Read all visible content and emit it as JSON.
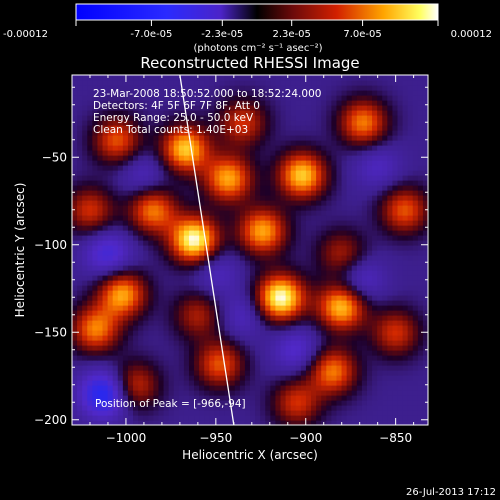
{
  "chart_data": {
    "type": "heatmap",
    "colorbar": {
      "tick_labels": [
        "-0.00012",
        "-7.0e-05",
        "-2.3e-05",
        "2.3e-05",
        "7.0e-05",
        "0.00012"
      ],
      "range": [
        -0.00012,
        0.00012
      ],
      "unit_label": "(photons cm⁻² s⁻¹ asec⁻²)"
    },
    "title": "Reconstructed RHESSI Image",
    "xlabel": "Heliocentric X (arcsec)",
    "ylabel": "Heliocentric Y (arcsec)",
    "xlim": [
      -1030,
      -832
    ],
    "ylim": [
      -203,
      -3
    ],
    "x_ticks": [
      -1000,
      -950,
      -900,
      -850
    ],
    "y_ticks": [
      -50,
      -100,
      -150,
      -200
    ],
    "annotations": [
      "23-Mar-2008 18:50:52.000 to 18:52:24.000",
      "Detectors: 4F 5F 6F 7F 8F, Att 0",
      "Energy Range: 25.0 - 50.0 keV",
      "Clean     Total counts: 1.40E+03"
    ],
    "peak_label": "Position of Peak = [-966,-94]",
    "peak": {
      "x": -966,
      "y": -94
    },
    "sources": [
      {
        "x": -962,
        "y": -97,
        "v": 0.00012
      },
      {
        "x": -967,
        "y": -45,
        "v": 0.0001
      },
      {
        "x": -943,
        "y": -62,
        "v": 9e-05
      },
      {
        "x": -902,
        "y": -60,
        "v": 0.0001
      },
      {
        "x": -914,
        "y": -130,
        "v": 0.00012
      },
      {
        "x": -924,
        "y": -92,
        "v": 9e-05
      },
      {
        "x": -880,
        "y": -135,
        "v": 0.0001
      },
      {
        "x": -1017,
        "y": -148,
        "v": 8e-05
      },
      {
        "x": -1002,
        "y": -128,
        "v": 9e-05
      },
      {
        "x": -985,
        "y": -80,
        "v": 8e-05
      },
      {
        "x": -1005,
        "y": -40,
        "v": 7e-05
      },
      {
        "x": -995,
        "y": -180,
        "v": 6e-05
      },
      {
        "x": -885,
        "y": -172,
        "v": 8e-05
      },
      {
        "x": -948,
        "y": -168,
        "v": 7e-05
      },
      {
        "x": -905,
        "y": -190,
        "v": 6e-05
      },
      {
        "x": -868,
        "y": -30,
        "v": 8e-05
      },
      {
        "x": -845,
        "y": -80,
        "v": 7e-05
      },
      {
        "x": -850,
        "y": -150,
        "v": 6e-05
      },
      {
        "x": -935,
        "y": -30,
        "v": 6e-05
      },
      {
        "x": -1020,
        "y": -80,
        "v": 6e-05
      },
      {
        "x": -880,
        "y": -105,
        "v": 5e-05
      },
      {
        "x": -960,
        "y": -140,
        "v": 5e-05
      },
      {
        "x": -1010,
        "y": -105,
        "v": -5e-05
      },
      {
        "x": -1012,
        "y": -185,
        "v": -8e-05
      },
      {
        "x": -905,
        "y": -160,
        "v": -4e-05
      },
      {
        "x": -870,
        "y": -120,
        "v": -4e-05
      },
      {
        "x": -990,
        "y": -60,
        "v": -3e-05
      },
      {
        "x": -950,
        "y": -115,
        "v": -3e-05
      },
      {
        "x": -935,
        "y": -140,
        "v": -3e-05
      },
      {
        "x": -860,
        "y": -55,
        "v": -3e-05
      }
    ],
    "limb_line": [
      [
        -970,
        -3
      ],
      [
        -940,
        -203
      ]
    ]
  },
  "footer_timestamp": "26-Jul-2013 17:12"
}
